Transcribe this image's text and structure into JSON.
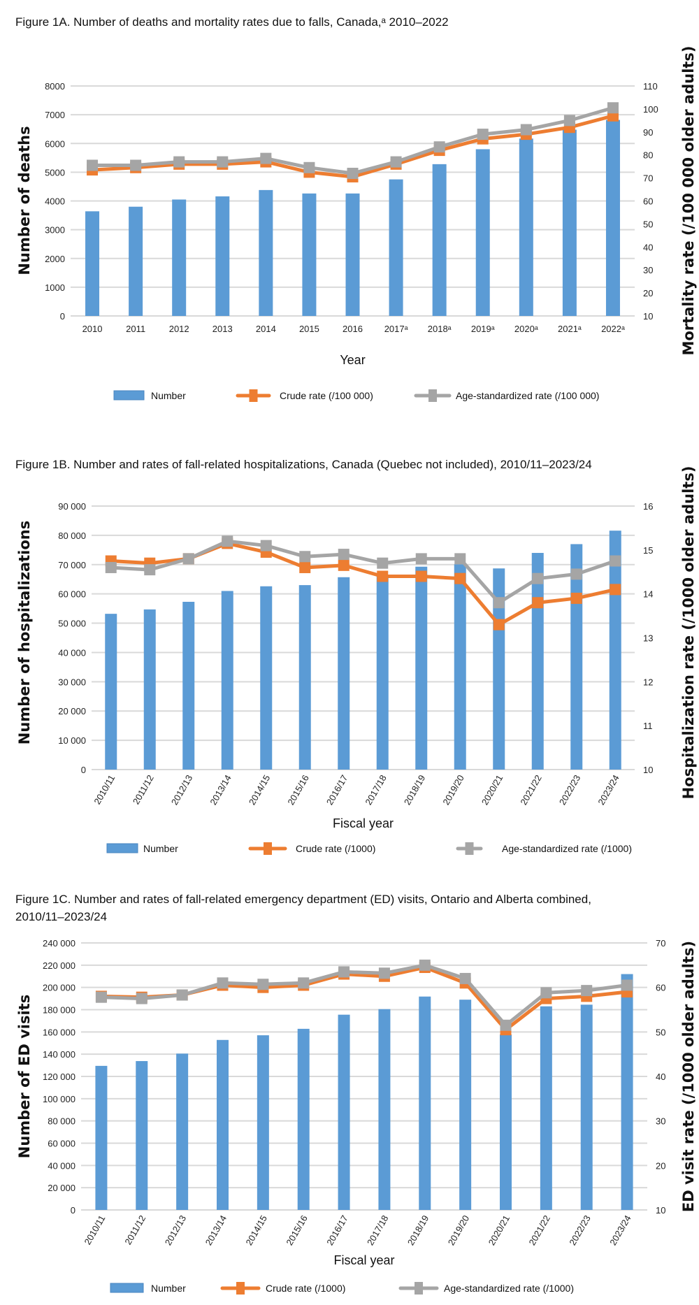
{
  "colors": {
    "number": "#5B9BD5",
    "crude": "#ED7D31",
    "age_standardized": "#A5A5A5",
    "grid": "#D9D9D9"
  },
  "chart_data": [
    {
      "type": "bar+line",
      "title": "Figure 1A. Number of deaths and mortality rates due to falls, Canada,ᵃ 2010–2022",
      "xlabel": "Year",
      "ylabel": "Number of deaths",
      "y2label": "Mortality rate (/100 000 older adults)",
      "ylim": [
        0,
        8000
      ],
      "yticks": [
        "0",
        "1000",
        "2000",
        "3000",
        "4000",
        "5000",
        "6000",
        "7000",
        "8000"
      ],
      "y2lim": [
        10,
        110
      ],
      "y2ticks": [
        "10",
        "20",
        "30",
        "40",
        "50",
        "60",
        "70",
        "80",
        "90",
        "100",
        "110"
      ],
      "grid": true,
      "legend": "bottom",
      "categories": [
        "2010",
        "2011",
        "2012",
        "2013",
        "2014",
        "2015",
        "2016",
        "2017ᵃ",
        "2018ᵃ",
        "2019ᵃ",
        "2020ᵃ",
        "2021ᵃ",
        "2022ᵃ"
      ],
      "series": [
        {
          "name": "Number",
          "kind": "bar",
          "axis": "left",
          "values": [
            3640,
            3800,
            4050,
            4160,
            4380,
            4260,
            4260,
            4750,
            5280,
            5800,
            6170,
            6480,
            6820
          ]
        },
        {
          "name": "Crude rate (/100 000)",
          "kind": "line",
          "axis": "right",
          "values": [
            73.5,
            74.5,
            76,
            76,
            77,
            72.5,
            70.5,
            76,
            82,
            87,
            89,
            92,
            97
          ]
        },
        {
          "name": "Age-standardized rate (/100 000)",
          "kind": "line",
          "axis": "right",
          "values": [
            75.5,
            75.5,
            77,
            77,
            78.5,
            74.5,
            72,
            77,
            83.5,
            89,
            91,
            95,
            100.5
          ]
        }
      ]
    },
    {
      "type": "bar+line",
      "title": "Figure 1B. Number and rates of fall-related hospitalizations, Canada (Quebec not included), 2010/11–2023/24",
      "xlabel": "Fiscal year",
      "ylabel": "Number of hospitalizations",
      "y2label": "Hospitalization rate (/1000 older adults)",
      "ylim": [
        0,
        90000
      ],
      "yticks": [
        "0",
        "10 000",
        "20 000",
        "30 000",
        "40 000",
        "50 000",
        "60 000",
        "70 000",
        "80 000",
        "90 000"
      ],
      "y2lim": [
        10,
        16
      ],
      "y2ticks": [
        "10",
        "11",
        "12",
        "13",
        "14",
        "15",
        "16"
      ],
      "grid": true,
      "legend": "bottom",
      "categories": [
        "2010/11",
        "2011/12",
        "2012/13",
        "2013/14",
        "2014/15",
        "2015/16",
        "2016/17",
        "2017/18",
        "2018/19",
        "2019/20",
        "2020/21",
        "2021/22",
        "2022/23",
        "2023/24"
      ],
      "series": [
        {
          "name": "Number",
          "kind": "bar",
          "axis": "left",
          "values": [
            53200,
            54700,
            57300,
            61000,
            62600,
            63000,
            65700,
            66000,
            69300,
            70100,
            68700,
            74000,
            77000,
            81600
          ]
        },
        {
          "name": "Crude rate (/1000)",
          "kind": "line",
          "axis": "right",
          "values": [
            14.75,
            14.7,
            14.8,
            15.15,
            14.95,
            14.6,
            14.65,
            14.4,
            14.4,
            14.35,
            13.3,
            13.8,
            13.9,
            14.1
          ]
        },
        {
          "name": "Age-standardized rate (/1000)",
          "kind": "line",
          "axis": "right",
          "values": [
            14.6,
            14.55,
            14.8,
            15.2,
            15.1,
            14.85,
            14.9,
            14.7,
            14.8,
            14.8,
            13.8,
            14.35,
            14.45,
            14.75
          ]
        }
      ]
    },
    {
      "type": "bar+line",
      "title": [
        "Figure 1C. Number and rates of fall-related emergency department (ED) visits, Ontario and Alberta combined,",
        "2010/11–2023/24"
      ],
      "xlabel": "Fiscal year",
      "ylabel": "Number of ED visits",
      "y2label": "ED visit rate (/1000 older adults)",
      "ylim": [
        0,
        240000
      ],
      "yticks": [
        "0",
        "20 000",
        "40 000",
        "60 000",
        "80 000",
        "100 000",
        "120 000",
        "140 000",
        "160 000",
        "180 000",
        "200 000",
        "220 000",
        "240 000"
      ],
      "y2lim": [
        10,
        70
      ],
      "y2ticks": [
        "10",
        "20",
        "30",
        "40",
        "50",
        "60",
        "70"
      ],
      "grid": true,
      "legend": "bottom",
      "categories": [
        "2010/11",
        "2011/12",
        "2012/13",
        "2013/14",
        "2014/15",
        "2015/16",
        "2016/17",
        "2017/18",
        "2018/19",
        "2019/20",
        "2020/21",
        "2021/22",
        "2022/23",
        "2023/24"
      ],
      "series": [
        {
          "name": "Number",
          "kind": "bar",
          "axis": "left",
          "values": [
            129500,
            133800,
            140500,
            152800,
            157000,
            162800,
            175500,
            180500,
            191800,
            189000,
            157700,
            183000,
            184500,
            212000
          ]
        },
        {
          "name": "Crude rate (/1000)",
          "kind": "line",
          "axis": "right",
          "values": [
            58,
            57.8,
            58.3,
            60.5,
            60,
            60.5,
            63,
            62.5,
            64.5,
            61,
            50.5,
            57.5,
            58,
            59
          ]
        },
        {
          "name": "Age-standardized rate (/1000)",
          "kind": "line",
          "axis": "right",
          "values": [
            57.8,
            57.5,
            58.3,
            61,
            60.7,
            61,
            63.5,
            63.2,
            65,
            62,
            51.5,
            58.8,
            59.3,
            60.5
          ]
        }
      ]
    }
  ]
}
